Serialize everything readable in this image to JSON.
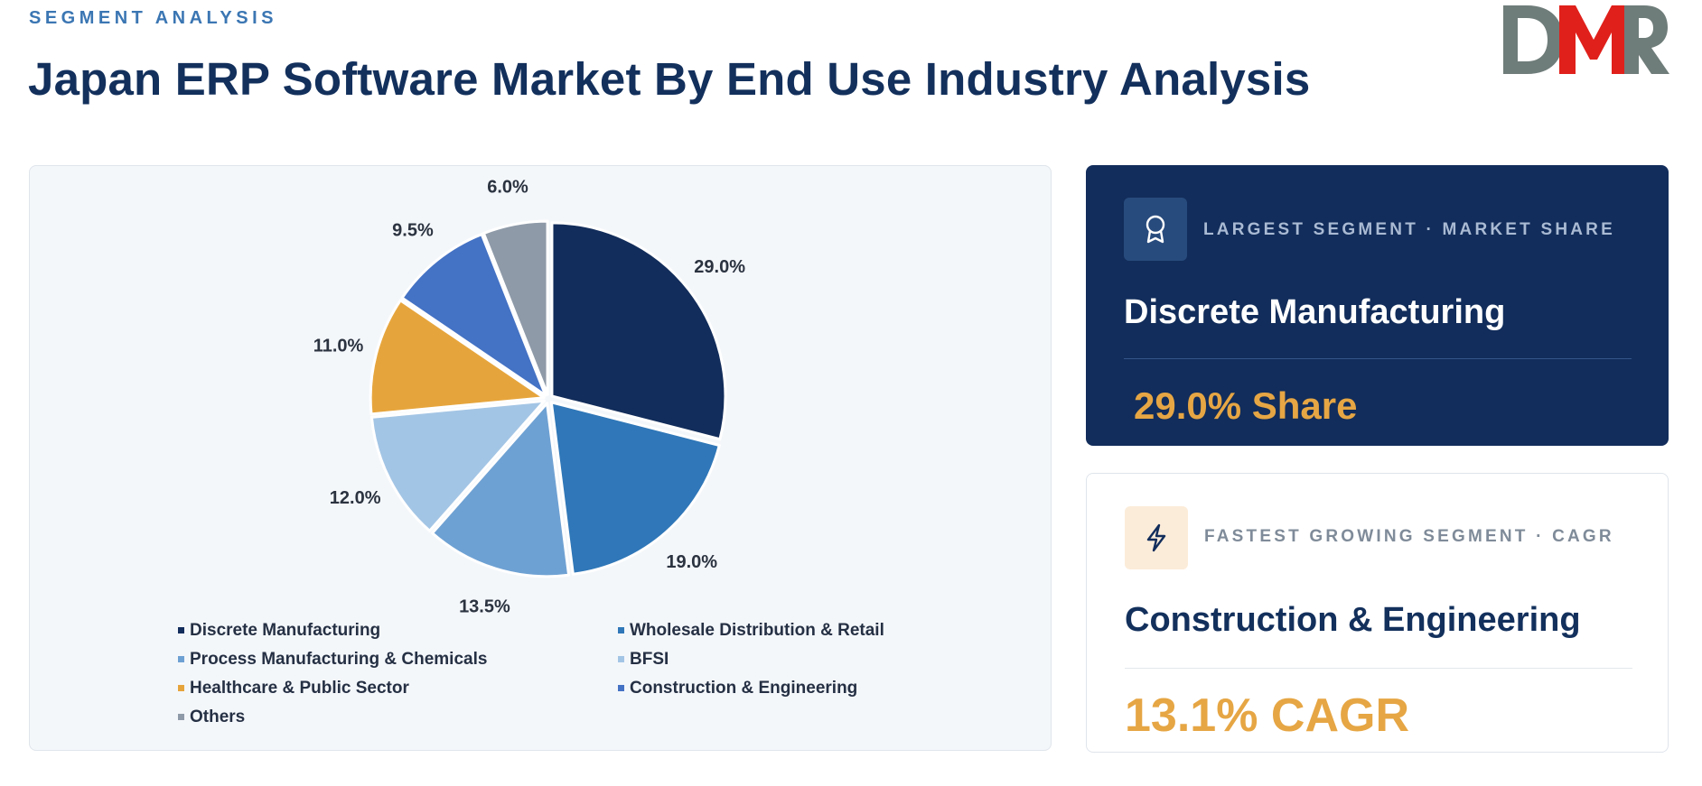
{
  "header": {
    "eyebrow": "SEGMENT ANALYSIS",
    "title": "Japan ERP Software Market By End Use Industry Analysis"
  },
  "logo": {
    "text": "DMR",
    "colors": {
      "gray": "#6f7d7a",
      "red": "#e0201b"
    }
  },
  "chart_data": {
    "type": "pie",
    "title": "",
    "slices": [
      {
        "label": "Discrete Manufacturing",
        "value": 29.0,
        "display": "29.0%",
        "color": "#122d5b"
      },
      {
        "label": "Wholesale Distribution & Retail",
        "value": 19.0,
        "display": "19.0%",
        "color": "#2f77b8"
      },
      {
        "label": "Process Manufacturing & Chemicals",
        "value": 13.5,
        "display": "13.5%",
        "color": "#6ea1d3"
      },
      {
        "label": "BFSI",
        "value": 12.0,
        "display": "12.0%",
        "color": "#a3c5e5"
      },
      {
        "label": "Healthcare & Public Sector",
        "value": 11.0,
        "display": "11.0%",
        "color": "#e6a53c"
      },
      {
        "label": "Construction & Engineering",
        "value": 9.5,
        "display": "9.5%",
        "color": "#4472c4"
      },
      {
        "label": "Others",
        "value": 6.0,
        "display": "6.0%",
        "color": "#8e9aa8"
      }
    ],
    "legend_position": "bottom"
  },
  "kpis": {
    "largest": {
      "label": "LARGEST SEGMENT  ·  MARKET SHARE",
      "value": "Discrete Manufacturing",
      "metric": "29.0% Share",
      "icon": "award-ribbon-icon"
    },
    "fastest": {
      "label": "FASTEST GROWING SEGMENT  ·  CAGR",
      "value": "Construction & Engineering",
      "metric": "13.1% CAGR",
      "icon": "lightning-bolt-icon"
    }
  },
  "colors": {
    "navy": "#122d5b",
    "accent": "#e6a644",
    "eyebrow": "#3b76b3"
  }
}
